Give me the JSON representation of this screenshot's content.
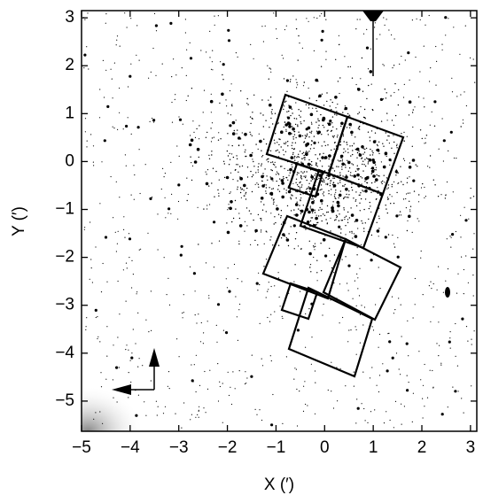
{
  "chart_data": {
    "type": "image",
    "x_label": "X (′)",
    "y_label": "Y (′)",
    "xlim": [
      -5,
      3.13
    ],
    "ylim": [
      -5.63,
      3.15
    ],
    "xticks": [
      {
        "value": -5,
        "label": "−5"
      },
      {
        "value": -4,
        "label": "−4"
      },
      {
        "value": -3,
        "label": "−3"
      },
      {
        "value": -2,
        "label": "−2"
      },
      {
        "value": -1,
        "label": "−1"
      },
      0,
      1,
      2,
      3
    ],
    "yticks": [
      {
        "value": -5,
        "label": "−5"
      },
      {
        "value": -4,
        "label": "−4"
      },
      {
        "value": -3,
        "label": "−3"
      },
      {
        "value": -2,
        "label": "−2"
      },
      {
        "value": -1,
        "label": "−1"
      },
      0,
      1,
      2,
      3
    ]
  }
}
